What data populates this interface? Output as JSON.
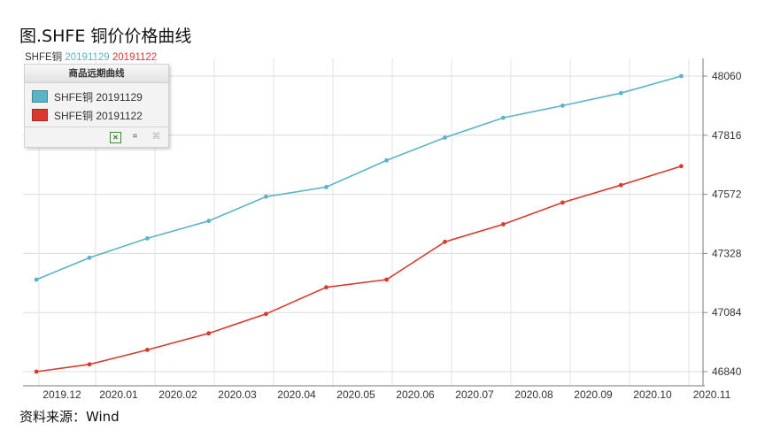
{
  "title": "图.SHFE 铜价价格曲线",
  "subtitle": {
    "prefix": "SHFE铜",
    "series_a": "20191129",
    "series_b": "20191122"
  },
  "legend": {
    "header": "商品远期曲线",
    "items": [
      "SHFE铜 20191129",
      "SHFE铜 20191122"
    ]
  },
  "source": "资料来源：Wind",
  "colors": {
    "series_a": "#5ab4c8",
    "series_b": "#d83a2e"
  },
  "chart_data": {
    "type": "line",
    "x_tick_labels": [
      "2019.12",
      "2020.01",
      "2020.02",
      "2020.03",
      "2020.04",
      "2020.05",
      "2020.06",
      "2020.07",
      "2020.08",
      "2020.09",
      "2020.10",
      "2020.11"
    ],
    "y_tick_labels": [
      "48060",
      "47816",
      "47572",
      "47328",
      "47084",
      "46840"
    ],
    "ylim": [
      46840,
      48060
    ],
    "grid": true,
    "series": [
      {
        "name": "SHFE铜 20191129",
        "color": "#5ab4c8",
        "points": [
          {
            "x": "2019-12-02",
            "y": 47220
          },
          {
            "x": "2019-12-31",
            "y": 47310
          },
          {
            "x": "2020-01-31",
            "y": 47390
          },
          {
            "x": "2020-03-02",
            "y": 47462
          },
          {
            "x": "2020-03-31",
            "y": 47562
          },
          {
            "x": "2020-05-01",
            "y": 47602
          },
          {
            "x": "2020-06-01",
            "y": 47712
          },
          {
            "x": "2020-07-01",
            "y": 47806
          },
          {
            "x": "2020-07-31",
            "y": 47888
          },
          {
            "x": "2020-08-31",
            "y": 47938
          },
          {
            "x": "2020-09-30",
            "y": 47990
          },
          {
            "x": "2020-10-31",
            "y": 48060
          }
        ]
      },
      {
        "name": "SHFE铜 20191122",
        "color": "#d83a2e",
        "points": [
          {
            "x": "2019-12-02",
            "y": 46840
          },
          {
            "x": "2019-12-31",
            "y": 46870
          },
          {
            "x": "2020-01-31",
            "y": 46930
          },
          {
            "x": "2020-03-02",
            "y": 46998
          },
          {
            "x": "2020-03-31",
            "y": 47078
          },
          {
            "x": "2020-05-01",
            "y": 47188
          },
          {
            "x": "2020-06-01",
            "y": 47220
          },
          {
            "x": "2020-07-01",
            "y": 47376
          },
          {
            "x": "2020-07-31",
            "y": 47448
          },
          {
            "x": "2020-08-31",
            "y": 47538
          },
          {
            "x": "2020-09-30",
            "y": 47610
          },
          {
            "x": "2020-10-31",
            "y": 47688
          }
        ]
      }
    ]
  }
}
